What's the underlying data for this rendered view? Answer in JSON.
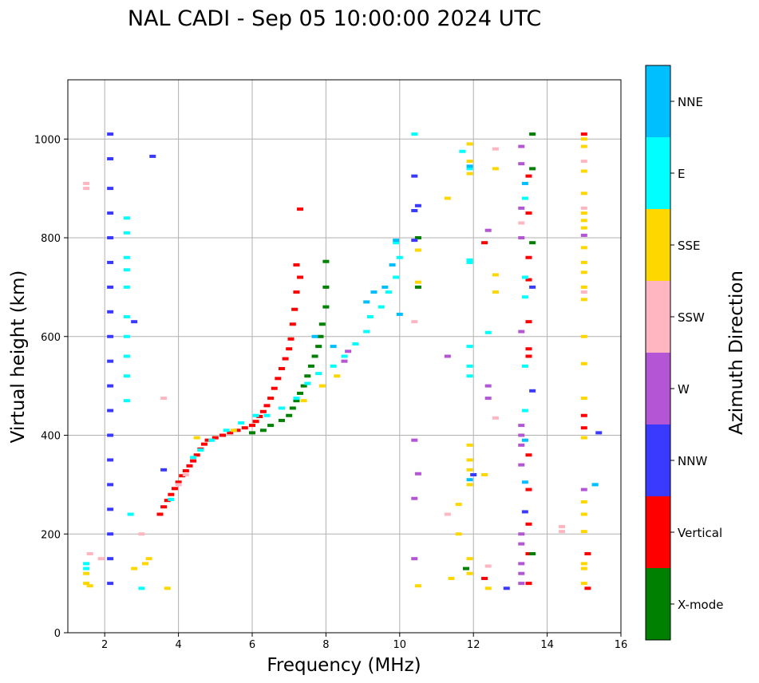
{
  "chart_data": {
    "type": "scatter",
    "title": "NAL CADI - Sep 05 10:00:00 2024 UTC",
    "xlabel": "Frequency (MHz)",
    "ylabel": "Virtual height (km)",
    "xlim": [
      1,
      16
    ],
    "ylim": [
      0,
      1120
    ],
    "xticks": [
      2,
      4,
      6,
      8,
      10,
      12,
      14,
      16
    ],
    "yticks": [
      0,
      200,
      400,
      600,
      800,
      1000
    ],
    "grid": true,
    "colorbar": {
      "label": "Azimuth Direction",
      "position": "right",
      "categories": [
        {
          "name": "X-mode",
          "color": "#008000"
        },
        {
          "name": "Vertical",
          "color": "#ff0000"
        },
        {
          "name": "NNW",
          "color": "#3a3aff"
        },
        {
          "name": "W",
          "color": "#b455d6"
        },
        {
          "name": "SSW",
          "color": "#ffb6c1"
        },
        {
          "name": "SSE",
          "color": "#ffd700"
        },
        {
          "name": "E",
          "color": "#00ffff"
        },
        {
          "name": "NNE",
          "color": "#00bfff"
        }
      ]
    },
    "series": [
      {
        "name": "Vertical",
        "points": [
          [
            3.5,
            240
          ],
          [
            3.6,
            255
          ],
          [
            3.7,
            268
          ],
          [
            3.8,
            280
          ],
          [
            3.9,
            292
          ],
          [
            4.0,
            305
          ],
          [
            4.1,
            318
          ],
          [
            4.2,
            328
          ],
          [
            4.3,
            338
          ],
          [
            4.4,
            348
          ],
          [
            4.5,
            360
          ],
          [
            4.6,
            372
          ],
          [
            4.7,
            382
          ],
          [
            4.8,
            390
          ],
          [
            5.0,
            395
          ],
          [
            5.2,
            400
          ],
          [
            5.4,
            405
          ],
          [
            5.6,
            410
          ],
          [
            5.8,
            415
          ],
          [
            6.0,
            420
          ],
          [
            6.1,
            428
          ],
          [
            6.2,
            438
          ],
          [
            6.3,
            448
          ],
          [
            6.4,
            460
          ],
          [
            6.5,
            475
          ],
          [
            6.6,
            495
          ],
          [
            6.7,
            515
          ],
          [
            6.8,
            535
          ],
          [
            6.9,
            555
          ],
          [
            7.0,
            575
          ],
          [
            7.05,
            595
          ],
          [
            7.1,
            625
          ],
          [
            7.15,
            655
          ],
          [
            7.2,
            690
          ],
          [
            7.3,
            720
          ],
          [
            7.2,
            745
          ],
          [
            7.3,
            858
          ],
          [
            15.0,
            440
          ],
          [
            15.0,
            1010
          ],
          [
            13.5,
            575
          ],
          [
            13.5,
            560
          ],
          [
            13.5,
            360
          ],
          [
            13.5,
            290
          ],
          [
            13.5,
            160
          ],
          [
            13.5,
            100
          ],
          [
            13.5,
            220
          ],
          [
            13.5,
            630
          ],
          [
            13.5,
            715
          ],
          [
            13.5,
            760
          ],
          [
            13.5,
            850
          ],
          [
            13.5,
            925
          ],
          [
            12.3,
            790
          ],
          [
            12.3,
            110
          ],
          [
            15.1,
            160
          ],
          [
            15.1,
            90
          ],
          [
            15.0,
            415
          ]
        ]
      },
      {
        "name": "X-mode",
        "points": [
          [
            6.0,
            405
          ],
          [
            6.3,
            410
          ],
          [
            6.5,
            420
          ],
          [
            6.8,
            430
          ],
          [
            7.0,
            440
          ],
          [
            7.1,
            455
          ],
          [
            7.2,
            470
          ],
          [
            7.3,
            485
          ],
          [
            7.4,
            500
          ],
          [
            7.5,
            520
          ],
          [
            7.6,
            540
          ],
          [
            7.7,
            560
          ],
          [
            7.8,
            580
          ],
          [
            7.85,
            600
          ],
          [
            7.9,
            625
          ],
          [
            8.0,
            660
          ],
          [
            8.0,
            700
          ],
          [
            8.0,
            752
          ],
          [
            13.6,
            1010
          ],
          [
            13.6,
            940
          ],
          [
            13.6,
            790
          ],
          [
            13.6,
            160
          ],
          [
            10.5,
            800
          ],
          [
            10.5,
            700
          ],
          [
            11.8,
            130
          ]
        ]
      },
      {
        "name": "NNW",
        "points": [
          [
            2.15,
            1010
          ],
          [
            2.15,
            960
          ],
          [
            2.15,
            900
          ],
          [
            2.15,
            850
          ],
          [
            2.15,
            800
          ],
          [
            2.15,
            750
          ],
          [
            2.15,
            700
          ],
          [
            2.15,
            650
          ],
          [
            2.15,
            600
          ],
          [
            2.15,
            550
          ],
          [
            2.15,
            500
          ],
          [
            2.15,
            450
          ],
          [
            2.15,
            400
          ],
          [
            2.15,
            350
          ],
          [
            2.15,
            300
          ],
          [
            2.15,
            250
          ],
          [
            2.15,
            200
          ],
          [
            2.15,
            150
          ],
          [
            2.15,
            100
          ],
          [
            3.3,
            965
          ],
          [
            3.6,
            330
          ],
          [
            2.8,
            630
          ],
          [
            10.4,
            925
          ],
          [
            10.4,
            855
          ],
          [
            10.5,
            865
          ],
          [
            10.4,
            795
          ],
          [
            12.0,
            320
          ],
          [
            13.4,
            245
          ],
          [
            12.9,
            90
          ],
          [
            15.4,
            405
          ],
          [
            13.6,
            490
          ],
          [
            13.6,
            700
          ]
        ]
      },
      {
        "name": "W",
        "points": [
          [
            10.4,
            390
          ],
          [
            10.4,
            150
          ],
          [
            10.4,
            272
          ],
          [
            10.5,
            322
          ],
          [
            12.4,
            500
          ],
          [
            12.4,
            475
          ],
          [
            13.3,
            140
          ],
          [
            13.3,
            100
          ],
          [
            13.3,
            120
          ],
          [
            13.3,
            420
          ],
          [
            13.3,
            400
          ],
          [
            13.3,
            380
          ],
          [
            13.3,
            340
          ],
          [
            13.3,
            200
          ],
          [
            13.3,
            180
          ],
          [
            13.3,
            610
          ],
          [
            13.3,
            950
          ],
          [
            13.3,
            985
          ],
          [
            13.3,
            860
          ],
          [
            13.3,
            800
          ],
          [
            15.0,
            290
          ],
          [
            15.0,
            805
          ],
          [
            12.4,
            815
          ],
          [
            11.3,
            560
          ],
          [
            8.5,
            550
          ],
          [
            8.6,
            570
          ]
        ]
      },
      {
        "name": "SSW",
        "points": [
          [
            1.5,
            910
          ],
          [
            1.5,
            900
          ],
          [
            1.6,
            160
          ],
          [
            1.9,
            150
          ],
          [
            3.0,
            200
          ],
          [
            4.0,
            300
          ],
          [
            4.2,
            320
          ],
          [
            3.6,
            475
          ],
          [
            10.4,
            630
          ],
          [
            11.3,
            240
          ],
          [
            12.4,
            135
          ],
          [
            12.6,
            435
          ],
          [
            12.6,
            980
          ],
          [
            13.3,
            830
          ],
          [
            14.4,
            215
          ],
          [
            14.4,
            205
          ],
          [
            15.0,
            690
          ],
          [
            15.0,
            860
          ],
          [
            15.0,
            955
          ]
        ]
      },
      {
        "name": "SSE",
        "points": [
          [
            1.5,
            100
          ],
          [
            1.5,
            120
          ],
          [
            1.6,
            95
          ],
          [
            3.1,
            140
          ],
          [
            3.2,
            150
          ],
          [
            3.7,
            90
          ],
          [
            2.8,
            130
          ],
          [
            4.5,
            395
          ],
          [
            5.5,
            410
          ],
          [
            7.4,
            470
          ],
          [
            7.9,
            500
          ],
          [
            8.3,
            520
          ],
          [
            10.5,
            95
          ],
          [
            10.5,
            710
          ],
          [
            10.5,
            775
          ],
          [
            11.4,
            110
          ],
          [
            11.3,
            880
          ],
          [
            11.9,
            990
          ],
          [
            11.9,
            955
          ],
          [
            11.9,
            930
          ],
          [
            11.9,
            380
          ],
          [
            11.9,
            350
          ],
          [
            11.9,
            330
          ],
          [
            11.9,
            300
          ],
          [
            11.9,
            150
          ],
          [
            11.9,
            120
          ],
          [
            12.3,
            320
          ],
          [
            12.4,
            90
          ],
          [
            12.6,
            690
          ],
          [
            12.6,
            725
          ],
          [
            12.6,
            940
          ],
          [
            11.6,
            200
          ],
          [
            11.6,
            260
          ],
          [
            15.0,
            100
          ],
          [
            15.0,
            130
          ],
          [
            15.0,
            140
          ],
          [
            15.0,
            205
          ],
          [
            15.0,
            240
          ],
          [
            15.0,
            265
          ],
          [
            15.0,
            395
          ],
          [
            15.0,
            475
          ],
          [
            15.0,
            545
          ],
          [
            15.0,
            600
          ],
          [
            15.0,
            675
          ],
          [
            15.0,
            700
          ],
          [
            15.0,
            730
          ],
          [
            15.0,
            750
          ],
          [
            15.0,
            780
          ],
          [
            15.0,
            820
          ],
          [
            15.0,
            835
          ],
          [
            15.0,
            850
          ],
          [
            15.0,
            890
          ],
          [
            15.0,
            935
          ],
          [
            15.0,
            985
          ],
          [
            15.0,
            1000
          ]
        ]
      },
      {
        "name": "E",
        "points": [
          [
            1.5,
            130
          ],
          [
            1.5,
            140
          ],
          [
            2.6,
            840
          ],
          [
            2.6,
            810
          ],
          [
            2.6,
            760
          ],
          [
            2.6,
            735
          ],
          [
            2.6,
            700
          ],
          [
            2.6,
            640
          ],
          [
            2.6,
            600
          ],
          [
            2.6,
            560
          ],
          [
            2.6,
            520
          ],
          [
            2.6,
            470
          ],
          [
            2.7,
            240
          ],
          [
            3.0,
            90
          ],
          [
            3.8,
            270
          ],
          [
            4.4,
            355
          ],
          [
            4.6,
            370
          ],
          [
            4.9,
            390
          ],
          [
            5.3,
            410
          ],
          [
            5.7,
            425
          ],
          [
            6.1,
            440
          ],
          [
            6.4,
            440
          ],
          [
            6.8,
            455
          ],
          [
            7.2,
            475
          ],
          [
            7.5,
            505
          ],
          [
            7.8,
            525
          ],
          [
            8.2,
            540
          ],
          [
            8.5,
            560
          ],
          [
            8.8,
            585
          ],
          [
            9.1,
            610
          ],
          [
            9.2,
            640
          ],
          [
            9.5,
            660
          ],
          [
            9.7,
            690
          ],
          [
            9.9,
            720
          ],
          [
            10.0,
            760
          ],
          [
            9.9,
            790
          ],
          [
            10.4,
            1010
          ],
          [
            11.9,
            940
          ],
          [
            11.9,
            750
          ],
          [
            11.9,
            755
          ],
          [
            11.9,
            520
          ],
          [
            11.9,
            540
          ],
          [
            11.9,
            580
          ],
          [
            12.4,
            608
          ],
          [
            13.4,
            880
          ],
          [
            13.4,
            720
          ],
          [
            13.4,
            680
          ],
          [
            13.4,
            540
          ],
          [
            13.4,
            450
          ],
          [
            15.3,
            300
          ],
          [
            11.7,
            975
          ]
        ]
      },
      {
        "name": "NNE",
        "points": [
          [
            7.7,
            600
          ],
          [
            8.2,
            580
          ],
          [
            9.1,
            670
          ],
          [
            9.3,
            690
          ],
          [
            9.6,
            700
          ],
          [
            9.8,
            745
          ],
          [
            9.9,
            795
          ],
          [
            10.0,
            645
          ],
          [
            11.9,
            310
          ],
          [
            11.9,
            945
          ],
          [
            13.4,
            305
          ],
          [
            13.4,
            390
          ],
          [
            13.4,
            910
          ],
          [
            15.3,
            300
          ]
        ]
      }
    ]
  }
}
